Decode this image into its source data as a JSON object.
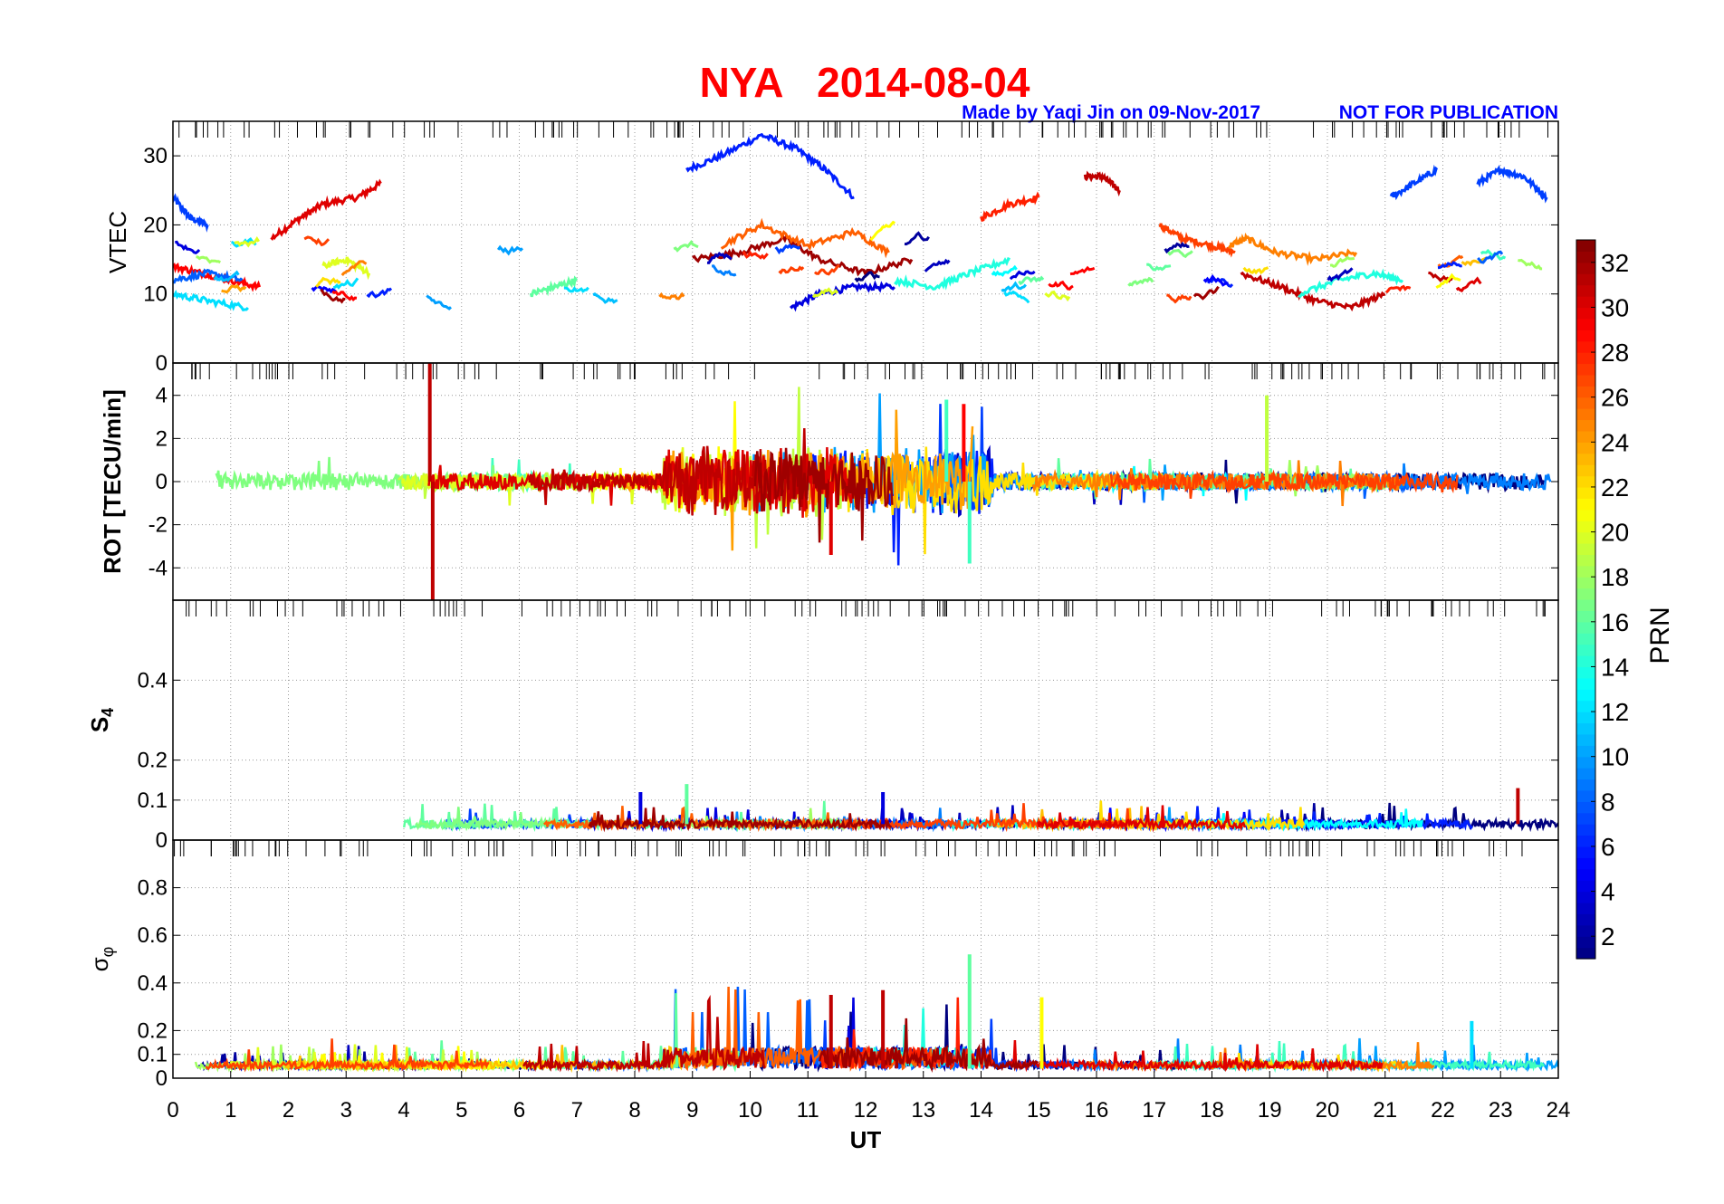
{
  "chart_data": {
    "type": "line",
    "title": "NYA   2014-08-04",
    "subtitle_left": "Made by Yaqi Jin on 09-Nov-2017",
    "subtitle_right": "NOT FOR PUBLICATION",
    "xlabel": "UT",
    "xlim": [
      0,
      24
    ],
    "xticks": [
      0,
      1,
      2,
      3,
      4,
      5,
      6,
      7,
      8,
      9,
      10,
      11,
      12,
      13,
      14,
      15,
      16,
      17,
      18,
      19,
      20,
      21,
      22,
      23,
      24
    ],
    "grid": true,
    "colorbar": {
      "label": "PRN",
      "range": [
        1,
        33
      ],
      "ticks": [
        2,
        4,
        6,
        8,
        10,
        12,
        14,
        16,
        18,
        20,
        22,
        24,
        26,
        28,
        30,
        32
      ],
      "colormap": "jet",
      "placement": "right"
    },
    "panels": [
      {
        "id": "vtec",
        "ylabel": "VTEC",
        "ylim": [
          0,
          35
        ],
        "yticks": [
          0,
          10,
          20,
          30
        ],
        "arcs": [
          {
            "prn": 7,
            "x": [
              0,
              0.3,
              0.6
            ],
            "y": [
              24,
              21,
              20
            ]
          },
          {
            "prn": 30,
            "x": [
              1.7,
              2.2,
              2.6,
              3.2,
              3.6
            ],
            "y": [
              18,
              21,
              23,
              24,
              26
            ]
          },
          {
            "prn": 6,
            "x": [
              8.9,
              9.5,
              10.2,
              10.8,
              11.3,
              11.8
            ],
            "y": [
              28,
              30,
              33,
              31,
              28,
              24
            ]
          },
          {
            "prn": 4,
            "x": [
              10.7,
              11.2,
              11.8,
              12.5
            ],
            "y": [
              8,
              10,
              11,
              11
            ]
          },
          {
            "prn": 28,
            "x": [
              14,
              14.5,
              15
            ],
            "y": [
              21,
              23,
              24
            ]
          },
          {
            "prn": 31,
            "x": [
              15.8,
              16.1,
              16.4
            ],
            "y": [
              27,
              27,
              25
            ]
          },
          {
            "prn": 27,
            "x": [
              17.1,
              17.5,
              18,
              18.4
            ],
            "y": [
              20,
              18,
              17,
              16
            ]
          },
          {
            "prn": 25,
            "x": [
              18.3,
              18.6,
              19.1,
              19.8,
              20.5
            ],
            "y": [
              17,
              18,
              16,
              15,
              16
            ]
          },
          {
            "prn": 7,
            "x": [
              21.1,
              21.5,
              21.9
            ],
            "y": [
              24,
              26,
              28
            ]
          },
          {
            "prn": 7,
            "x": [
              22.6,
              23,
              23.4,
              23.8
            ],
            "y": [
              26,
              28,
              27,
              24
            ]
          },
          {
            "prn": 29,
            "x": [
              0,
              0.5,
              1,
              1.5
            ],
            "y": [
              14,
              13,
              12,
              11
            ]
          },
          {
            "prn": 12,
            "x": [
              0,
              0.6,
              1.3
            ],
            "y": [
              10,
              9,
              8
            ]
          },
          {
            "prn": 8,
            "x": [
              0,
              0.6,
              1.2
            ],
            "y": [
              12,
              13,
              12
            ]
          },
          {
            "prn": 20,
            "x": [
              2.6,
              3,
              3.4
            ],
            "y": [
              14,
              15,
              13
            ]
          },
          {
            "prn": 16,
            "x": [
              6.2,
              6.6,
              7
            ],
            "y": [
              10,
              11,
              12
            ]
          },
          {
            "prn": 32,
            "x": [
              9,
              9.8,
              10.6,
              11.2,
              12,
              12.8
            ],
            "y": [
              15,
              16,
              18,
              15,
              13,
              15
            ]
          },
          {
            "prn": 26,
            "x": [
              9.5,
              10.2,
              11,
              11.8,
              12.4
            ],
            "y": [
              17,
              20,
              17,
              19,
              16
            ]
          },
          {
            "prn": 14,
            "x": [
              12.5,
              13.2,
              13.8,
              14.5
            ],
            "y": [
              12,
              11,
              13,
              15
            ]
          },
          {
            "prn": 31,
            "x": [
              18.5,
              19.2,
              19.8,
              20.4,
              21
            ],
            "y": [
              13,
              11,
              9,
              8,
              10
            ]
          },
          {
            "prn": 14,
            "x": [
              19.5,
              20.2,
              20.8,
              21.3
            ],
            "y": [
              10,
              12,
              13,
              12
            ]
          }
        ]
      },
      {
        "id": "rot",
        "ylabel": "ROT [TECU/min]",
        "ylim": [
          -5.5,
          5.5
        ],
        "yticks": [
          -4,
          -2,
          0,
          2,
          4
        ],
        "peaks": [
          {
            "prn": 31,
            "x": 4.45,
            "y": 5.5
          },
          {
            "prn": 31,
            "x": 4.5,
            "y": -5.5
          },
          {
            "prn": 19,
            "x": 18.95,
            "y": 4
          },
          {
            "prn": 15,
            "x": 13.4,
            "y": 3.8
          },
          {
            "prn": 15,
            "x": 13.8,
            "y": -3.8
          },
          {
            "prn": 29,
            "x": 13.7,
            "y": 3.6
          },
          {
            "prn": 30,
            "x": 11.4,
            "y": -3.4
          }
        ]
      },
      {
        "id": "s4",
        "ylabel": "S4",
        "ylim": [
          0,
          0.6
        ],
        "yticks": [
          0,
          0.1,
          0.2,
          0.4
        ],
        "peaks": [
          {
            "prn": 16,
            "x": 8.9,
            "y": 0.14
          },
          {
            "prn": 31,
            "x": 23.3,
            "y": 0.13
          },
          {
            "prn": 4,
            "x": 12.3,
            "y": 0.12
          },
          {
            "prn": 4,
            "x": 8.1,
            "y": 0.12
          }
        ]
      },
      {
        "id": "sigma",
        "ylabel": "σφ",
        "ylim": [
          0,
          1
        ],
        "yticks": [
          0,
          0.1,
          0.2,
          0.4,
          0.6,
          0.8
        ],
        "peaks": [
          {
            "prn": 16,
            "x": 13.8,
            "y": 0.52
          },
          {
            "prn": 31,
            "x": 12.3,
            "y": 0.37
          },
          {
            "prn": 31,
            "x": 11.4,
            "y": 0.35
          },
          {
            "prn": 21,
            "x": 15.05,
            "y": 0.34
          },
          {
            "prn": 12,
            "x": 22.5,
            "y": 0.24
          }
        ]
      }
    ]
  }
}
